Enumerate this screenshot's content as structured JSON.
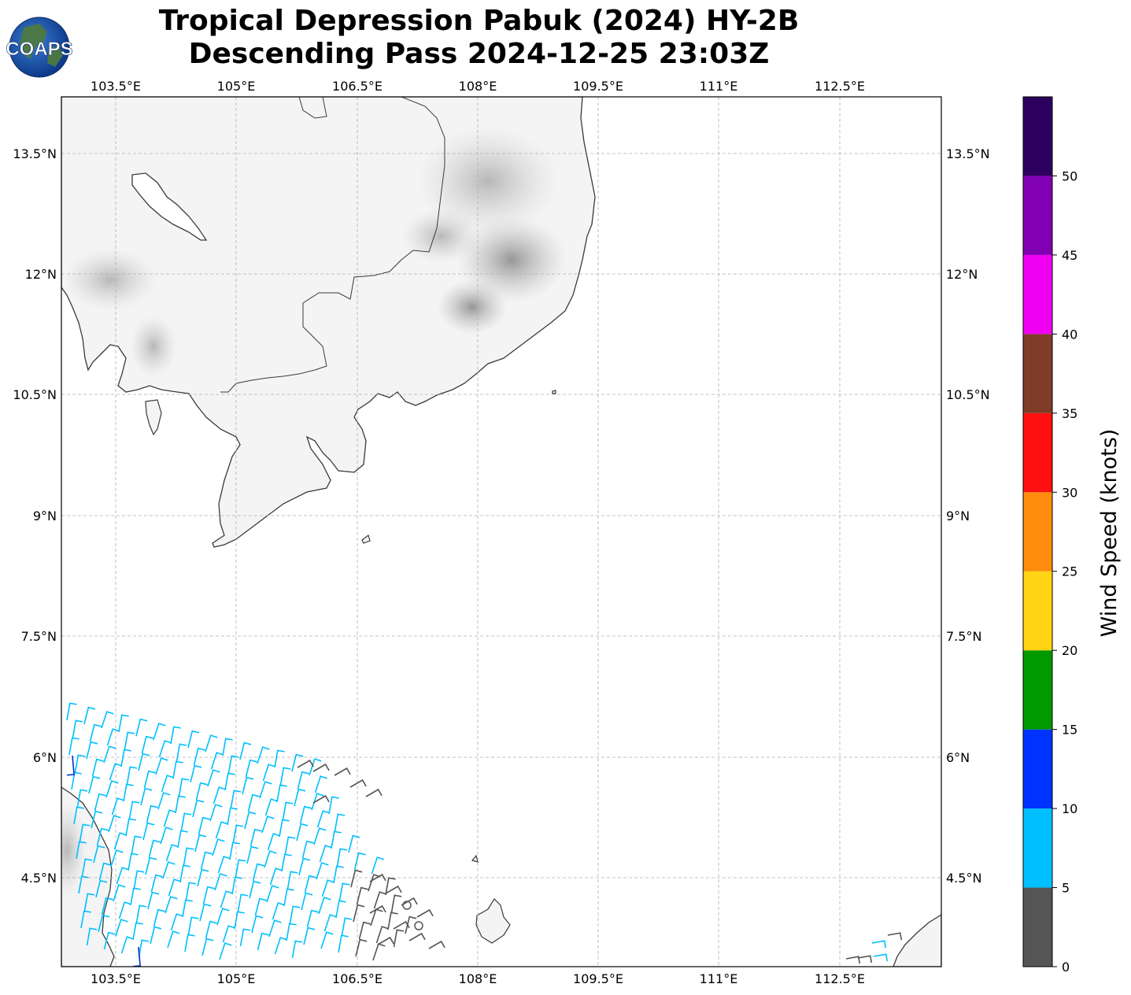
{
  "title": {
    "line1": "Tropical Depression Pabuk (2024) HY-2B",
    "line2": "Descending Pass 2024-12-25 23:03Z"
  },
  "logo": {
    "text": "COAPS",
    "icon": "globe-logo"
  },
  "map": {
    "lon_range": [
      102.75,
      113.75
    ],
    "lat_range": [
      3.25,
      14.2
    ],
    "x_ticks": [
      "103.5°E",
      "105°E",
      "106.5°E",
      "108°E",
      "109.5°E",
      "111°E",
      "112.5°E"
    ],
    "y_ticks": [
      "13.5°N",
      "12°N",
      "10.5°N",
      "9°N",
      "7.5°N",
      "6°N",
      "4.5°N"
    ],
    "grid": true,
    "gridline_style": "dashed",
    "land_shading": "grayscale terrain",
    "coastline_color": "#333333"
  },
  "colorbar": {
    "label": "Wind Speed (knots)",
    "ticks": [
      "0",
      "5",
      "10",
      "15",
      "20",
      "25",
      "30",
      "35",
      "40",
      "45",
      "50"
    ],
    "bins": [
      {
        "min": 0,
        "max": 5,
        "color": "#555555"
      },
      {
        "min": 5,
        "max": 10,
        "color": "#00bfff"
      },
      {
        "min": 10,
        "max": 15,
        "color": "#0033ff"
      },
      {
        "min": 15,
        "max": 20,
        "color": "#009900"
      },
      {
        "min": 20,
        "max": 25,
        "color": "#ffd414"
      },
      {
        "min": 25,
        "max": 30,
        "color": "#ff8c0c"
      },
      {
        "min": 30,
        "max": 35,
        "color": "#ff1010"
      },
      {
        "min": 35,
        "max": 40,
        "color": "#7f3c28"
      },
      {
        "min": 40,
        "max": 45,
        "color": "#f000f0"
      },
      {
        "min": 45,
        "max": 50,
        "color": "#8200b4"
      },
      {
        "min": 50,
        "max": 55,
        "color": "#2d005f"
      }
    ]
  }
}
